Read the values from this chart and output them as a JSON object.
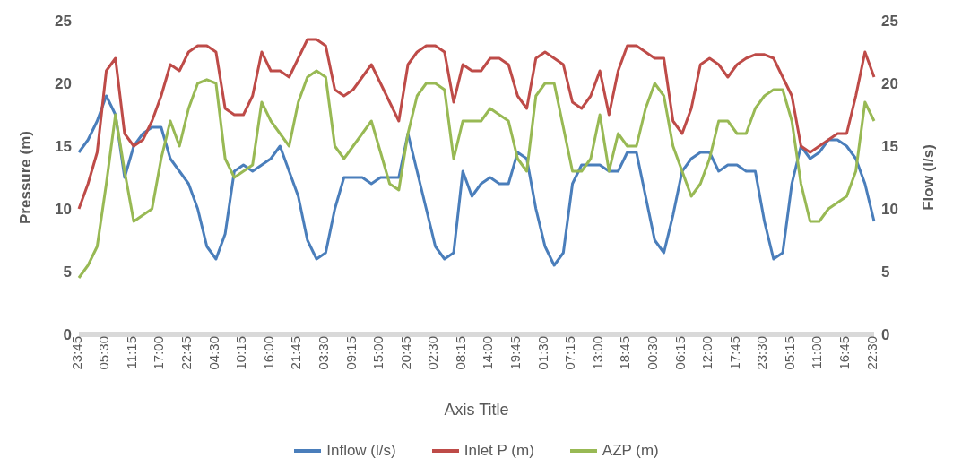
{
  "chart_data": {
    "type": "line",
    "xlabel": "Axis Title",
    "ylabel": "Pressure (m)",
    "y2label": "Flow (l/s)",
    "categories": [
      "23:45",
      null,
      null,
      "05:30",
      null,
      null,
      "11:15",
      null,
      null,
      "17:00",
      null,
      null,
      "22:45",
      null,
      null,
      "04:30",
      null,
      null,
      "10:15",
      null,
      null,
      "16:00",
      null,
      null,
      "21:45",
      null,
      null,
      "03:30",
      null,
      null,
      "09:15",
      null,
      null,
      "15:00",
      null,
      null,
      "20:45",
      null,
      null,
      "02:30",
      null,
      null,
      "08:15",
      null,
      null,
      "14:00",
      null,
      null,
      "19:45",
      null,
      null,
      "01:30",
      null,
      null,
      "07:15",
      null,
      null,
      "13:00",
      null,
      null,
      "18:45",
      null,
      null,
      "00:30",
      null,
      null,
      "06:15",
      null,
      null,
      "12:00",
      null,
      null,
      "17:45",
      null,
      null,
      "23:30",
      null,
      null,
      "05:15",
      null,
      null,
      "11:00",
      null,
      null,
      "16:45",
      null,
      null,
      "22:30"
    ],
    "ylim": [
      0,
      25
    ],
    "yticks": [
      0,
      5,
      10,
      15,
      20,
      25
    ],
    "y2lim": [
      0,
      25
    ],
    "y2ticks": [
      0,
      5,
      10,
      15,
      20,
      25
    ],
    "grid": false,
    "legend": "bottom",
    "marker": "none",
    "line_style": "solid",
    "series": [
      {
        "name": "Inflow (l/s)",
        "color": "#4a7ebb",
        "axis": "y2",
        "values": [
          14.5,
          15.5,
          17,
          19,
          17.5,
          12.5,
          15,
          16,
          16.5,
          16.5,
          14,
          13,
          12,
          10,
          7,
          6,
          8,
          13,
          13.5,
          13,
          13.5,
          14,
          15,
          13,
          11,
          7.5,
          6,
          6.5,
          10,
          12.5,
          12.5,
          12.5,
          12,
          12.5,
          12.5,
          12.5,
          16,
          13,
          10,
          7,
          6,
          6.5,
          13,
          11,
          12,
          12.5,
          12,
          12,
          14.5,
          14,
          10,
          7,
          5.5,
          6.5,
          12,
          13.5,
          13.5,
          13.5,
          13,
          13,
          14.5,
          14.5,
          11,
          7.5,
          6.5,
          9.5,
          13,
          14,
          14.5,
          14.5,
          13,
          13.5,
          13.5,
          13,
          13,
          9,
          6,
          6.5,
          12,
          15,
          14,
          14.5,
          15.5,
          15.5,
          15,
          14,
          12,
          9
        ]
      },
      {
        "name": "Inlet P (m)",
        "color": "#be4b48",
        "values": [
          10,
          12,
          14.5,
          21,
          22,
          16,
          15,
          15.5,
          17,
          19,
          21.5,
          21,
          22.5,
          23,
          23,
          22.5,
          18,
          17.5,
          17.5,
          19,
          22.5,
          21,
          21,
          20.5,
          22,
          23.5,
          23.5,
          23,
          19.5,
          19,
          19.5,
          20.5,
          21.5,
          20,
          18.5,
          17,
          21.5,
          22.5,
          23,
          23,
          22.5,
          18.5,
          21.5,
          21,
          21,
          22,
          22,
          21.5,
          19,
          18,
          22,
          22.5,
          22,
          21.5,
          18.5,
          18,
          19,
          21,
          17.5,
          21,
          23,
          23,
          22.5,
          22,
          22,
          17,
          16,
          18,
          21.5,
          22,
          21.5,
          20.5,
          21.5,
          22,
          22.3,
          22.3,
          22,
          20.5,
          19,
          15,
          14.5,
          15,
          15.5,
          16,
          16,
          19,
          22.5,
          20.5
        ]
      },
      {
        "name": "AZP (m)",
        "color": "#98b954",
        "values": [
          4.5,
          5.5,
          7,
          12,
          17.5,
          13,
          9,
          9.5,
          10,
          14,
          17,
          15,
          18,
          20,
          20.3,
          20,
          14,
          12.5,
          13,
          13.5,
          18.5,
          17,
          16,
          15,
          18.5,
          20.5,
          21,
          20.5,
          15,
          14,
          15,
          16,
          17,
          14.5,
          12,
          11.5,
          16,
          19,
          20,
          20,
          19.5,
          14,
          17,
          17,
          17,
          18,
          17.5,
          17,
          14,
          13,
          19,
          20,
          20,
          16.5,
          13,
          13,
          14,
          17.5,
          13,
          16,
          15,
          15,
          18,
          20,
          19,
          15,
          13,
          11,
          12,
          14,
          17,
          17,
          16,
          16,
          18,
          19,
          19.5,
          19.5,
          17,
          12,
          9,
          9,
          10,
          10.5,
          11,
          13,
          18.5,
          17
        ]
      }
    ]
  }
}
